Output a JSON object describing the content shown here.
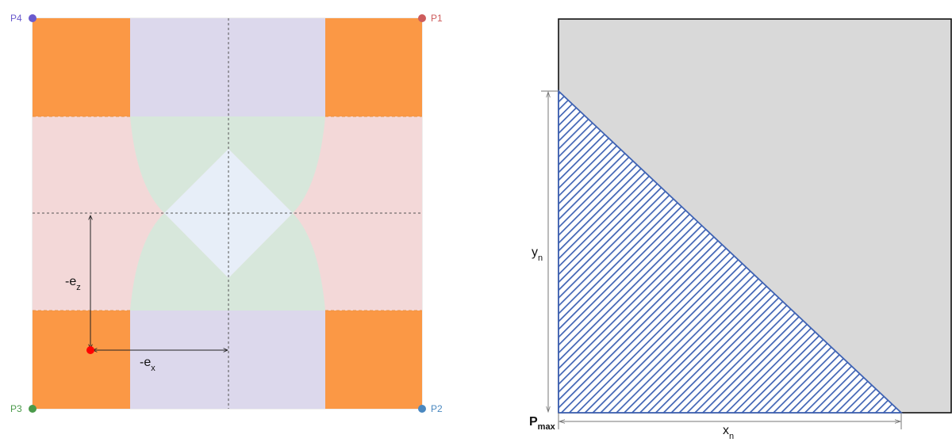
{
  "left_diagram": {
    "corners": [
      {
        "label": "P4",
        "color": "#6a5acd"
      },
      {
        "label": "P1",
        "color": "#cd5c5c"
      },
      {
        "label": "P3",
        "color": "#4a9a4a"
      },
      {
        "label": "P2",
        "color": "#4a88c0"
      }
    ],
    "ez_label": {
      "main": "-e",
      "sub": "z"
    },
    "ex_label": {
      "main": "-e",
      "sub": "x"
    },
    "colors": {
      "corner_zone": "#fb9845",
      "vertical_band": "#dcd8ec",
      "horizontal_band": "#f3d8d8",
      "lobe": "#d7e7db",
      "center_diamond": "#e7eef8",
      "eccentric_point": "#ff0000"
    }
  },
  "right_diagram": {
    "y_label": {
      "main": "y",
      "sub": "n"
    },
    "x_label": {
      "main": "x",
      "sub": "n"
    },
    "pmax_label": {
      "main": "P",
      "sub": "max"
    },
    "colors": {
      "section_fill": "#d9d9d9",
      "section_border": "#111111",
      "hatch": "#3f63b4",
      "hatch_bg": "#ffffff"
    }
  }
}
